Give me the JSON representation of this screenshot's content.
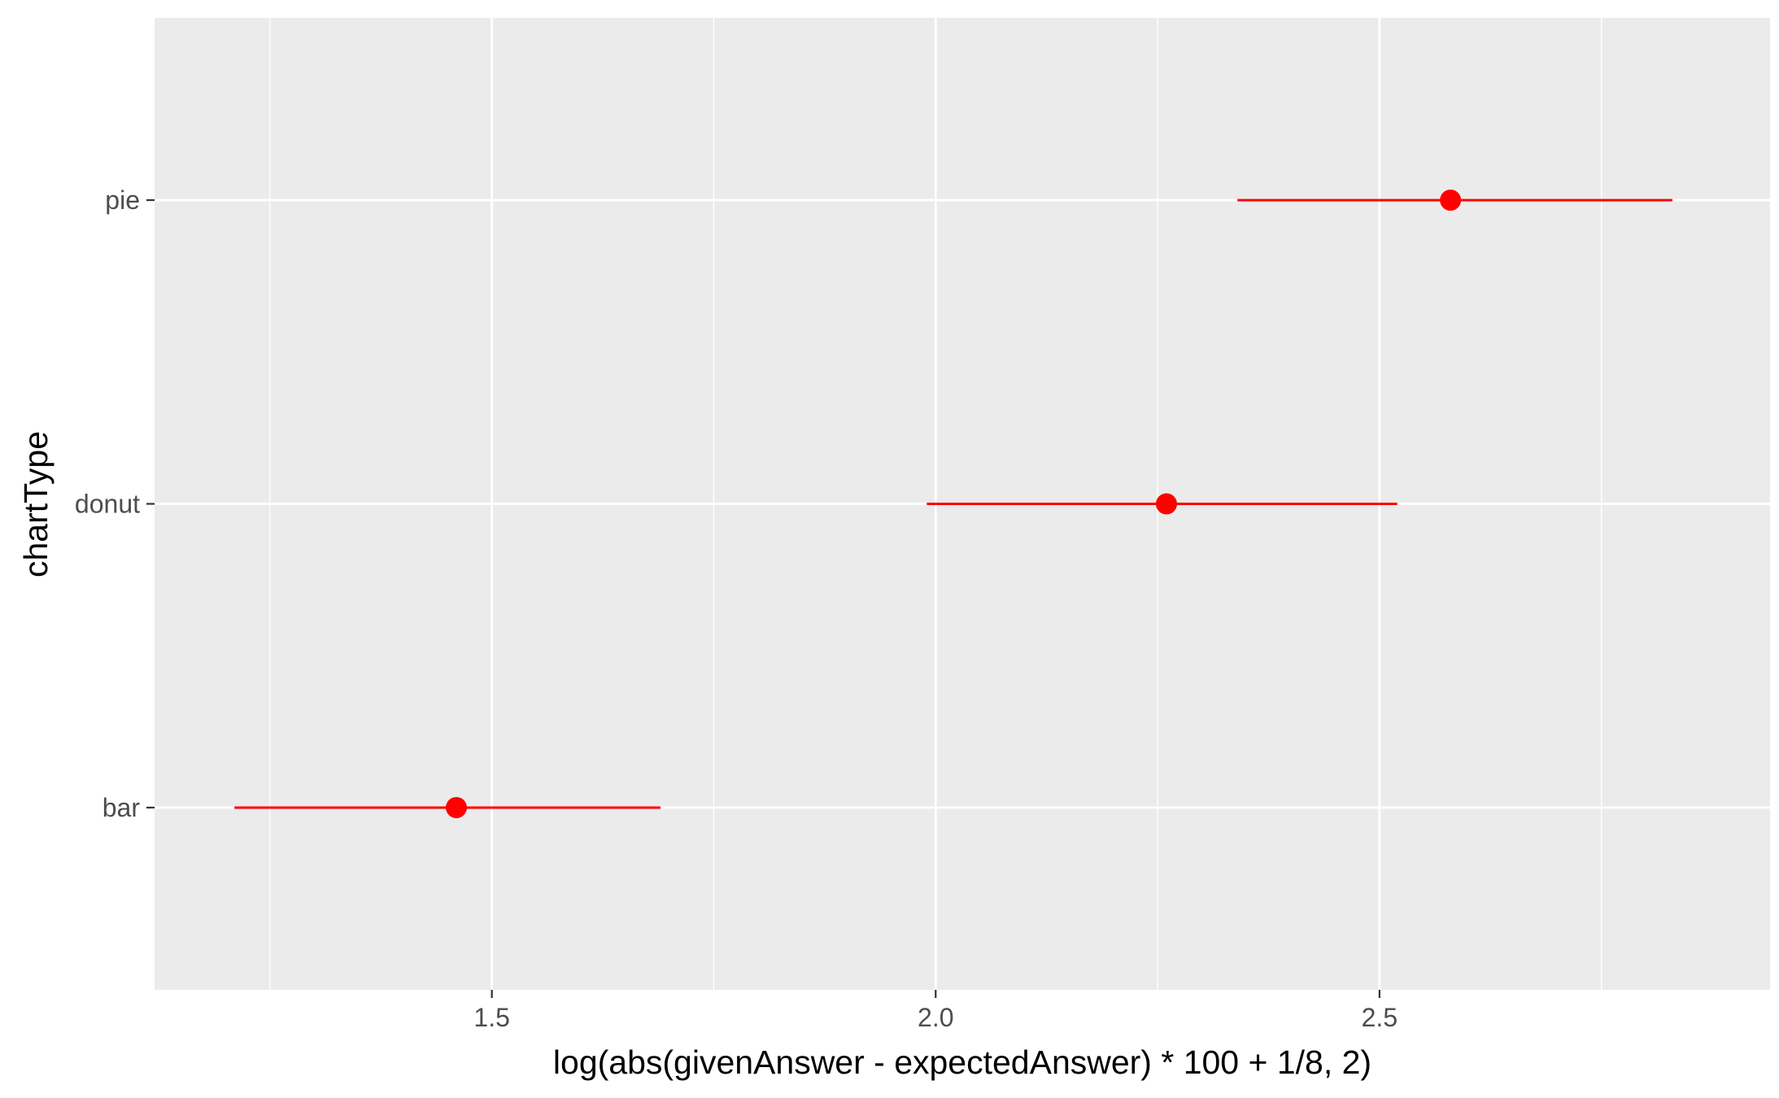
{
  "chart_data": {
    "type": "scatter",
    "title": "",
    "xlabel": "log(abs(givenAnswer - expectedAnswer) * 100 + 1/8, 2)",
    "ylabel": "chartType",
    "categories": [
      "bar",
      "donut",
      "pie"
    ],
    "xlim": [
      1.12,
      2.94
    ],
    "x_ticks": [
      1.5,
      2.0,
      2.5
    ],
    "x_tick_labels": [
      "1.5",
      "2.0",
      "2.5"
    ],
    "grid": true,
    "series": [
      {
        "points": [
          {
            "category": "pie",
            "estimate": 2.58,
            "lower": 2.34,
            "upper": 2.83
          },
          {
            "category": "donut",
            "estimate": 2.26,
            "lower": 1.99,
            "upper": 2.52
          },
          {
            "category": "bar",
            "estimate": 1.46,
            "lower": 1.21,
            "upper": 1.69
          }
        ],
        "color": "#ff0000"
      }
    ],
    "panel_background": "#ebebeb",
    "grid_color": "#ffffff"
  }
}
